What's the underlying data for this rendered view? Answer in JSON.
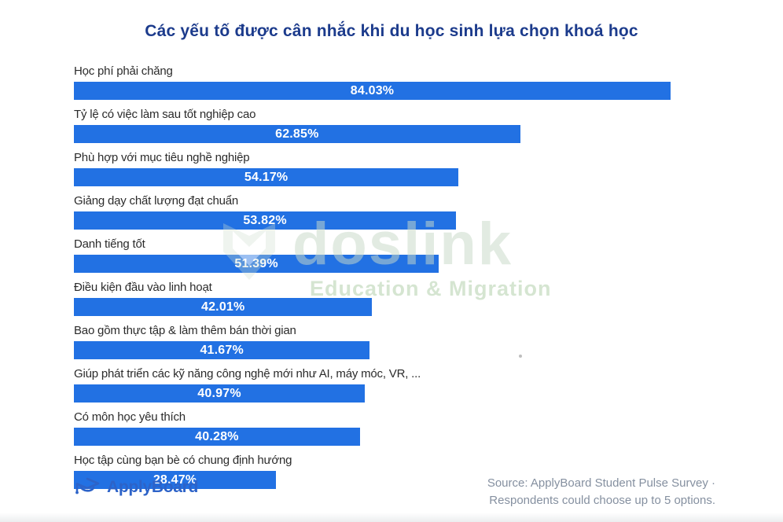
{
  "title": "Các yếu tố được cân nhắc khi du học sinh lựa chọn khoá học",
  "chart_data": {
    "type": "bar",
    "orientation": "horizontal",
    "title": "Các yếu tố được cân nhắc khi du học sinh lựa chọn khoá học",
    "categories": [
      "Học phí phải chăng",
      "Tỷ lệ có việc làm sau tốt nghiệp cao",
      "Phù hợp với mục tiêu nghề nghiệp",
      "Giảng dạy chất lượng đạt chuẩn",
      "Danh tiếng tốt",
      "Điều kiện đầu vào linh hoạt",
      "Bao gồm thực tập & làm thêm bán thời gian",
      "Giúp phát triển các kỹ năng công nghệ mới như AI, máy móc, VR, ...",
      "Có môn học yêu thích",
      "Học tập cùng bạn bè có chung định hướng"
    ],
    "values": [
      84.03,
      62.85,
      54.17,
      53.82,
      51.39,
      42.01,
      41.67,
      40.97,
      40.28,
      28.47
    ],
    "value_labels": [
      "84.03%",
      "62.85%",
      "54.17%",
      "53.82%",
      "51.39%",
      "42.01%",
      "41.67%",
      "40.97%",
      "40.28%",
      "28.47%"
    ],
    "xlabel": "",
    "ylabel": "",
    "xlim": [
      0,
      93
    ],
    "grid": false,
    "legend": false,
    "bar_color": "#2271e3",
    "value_label_color": "#ffffff"
  },
  "watermark": {
    "brand": "doslink",
    "tagline": "Education & Migration",
    "logo": "doslink-shield-icon"
  },
  "footer": {
    "brand_name": "ApplyBoard",
    "logo": "applyboard-graduation-cap-icon",
    "source_line1": "Source: ApplyBoard Student Pulse Survey ·",
    "source_line2": "Respondents could choose up to 5 options."
  },
  "colors": {
    "background": "#ffffff",
    "title": "#1c3b8c",
    "bar": "#2271e3",
    "category_label": "#2b2b2b",
    "source_text": "#8590a0",
    "brand_blue": "#2d63c8",
    "watermark_green": "#c8d8c8"
  }
}
